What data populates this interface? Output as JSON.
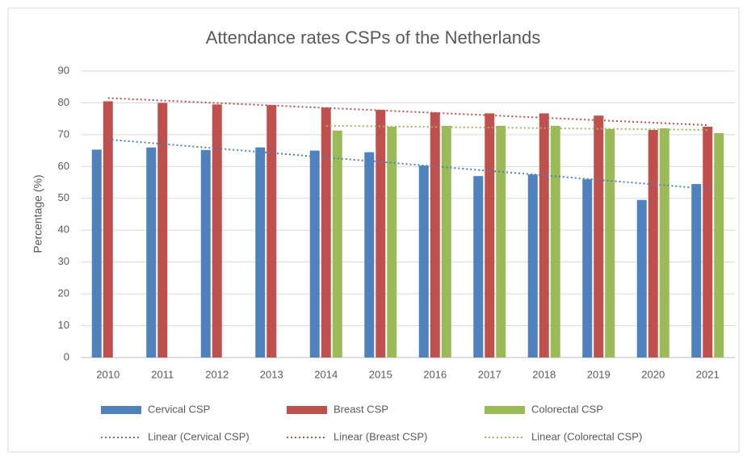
{
  "chart_data": {
    "type": "bar",
    "title": "Attendance rates CSPs of the Netherlands",
    "y_label": "Percentage (%)",
    "categories": [
      "2010",
      "2011",
      "2012",
      "2013",
      "2014",
      "2015",
      "2016",
      "2017",
      "2018",
      "2019",
      "2020",
      "2021"
    ],
    "series": [
      {
        "name": "Cervical CSP",
        "color": "#4f81bd",
        "values": [
          65.3,
          66,
          65.2,
          66,
          65,
          64.5,
          60.3,
          57,
          57.5,
          56,
          49.5,
          54.5
        ]
      },
      {
        "name": "Breast CSP",
        "color": "#c0504d",
        "values": [
          80.5,
          80,
          79.5,
          79.3,
          78.5,
          77.8,
          77,
          76.7,
          76.7,
          76,
          71.5,
          72.5
        ]
      },
      {
        "name": "Colorectal CSP",
        "color": "#9bbb59",
        "values": [
          null,
          null,
          null,
          null,
          71.3,
          72.5,
          72.8,
          72.8,
          72.8,
          71.8,
          72,
          70.5
        ]
      }
    ],
    "trendlines": [
      {
        "name": "Linear (Cervical CSP)",
        "color": "#4f81bd",
        "x": [
          "2010",
          "2021"
        ],
        "values": [
          68.5,
          53
        ]
      },
      {
        "name": "Linear (Breast CSP)",
        "color": "#c0504d",
        "x": [
          "2010",
          "2021"
        ],
        "values": [
          81.5,
          73
        ]
      },
      {
        "name": "Linear (Colorectal CSP)",
        "color": "#9bbb59",
        "x": [
          "2014",
          "2021"
        ],
        "values": [
          72.8,
          71.5
        ]
      }
    ],
    "ylim": [
      0,
      90
    ],
    "yticks": [
      0,
      10,
      20,
      30,
      40,
      50,
      60,
      70,
      80,
      90
    ],
    "grid": true
  }
}
